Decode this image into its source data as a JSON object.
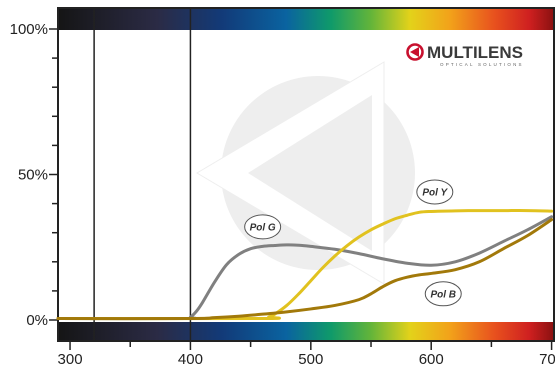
{
  "brand": {
    "name": "MULTILENS",
    "tagline": "OPTICAL SOLUTIONS",
    "logo_color": "#c8102e"
  },
  "chart_data": {
    "type": "line",
    "title": "",
    "xlabel": "",
    "ylabel": "",
    "xlim": [
      290,
      702
    ],
    "ylim": [
      0,
      100
    ],
    "x_ticks": [
      {
        "value": 300,
        "label": "300"
      },
      {
        "value": 400,
        "label": "400"
      },
      {
        "value": 500,
        "label": "500"
      },
      {
        "value": 600,
        "label": "600"
      },
      {
        "value": 700,
        "label": "700"
      }
    ],
    "y_ticks": [
      {
        "value": 0,
        "label": "0%"
      },
      {
        "value": 50,
        "label": "50%"
      },
      {
        "value": 100,
        "label": "100%"
      }
    ],
    "vertical_markers": [
      320,
      400
    ],
    "grid": false,
    "series": [
      {
        "name": "Pol G",
        "color": "#808080",
        "label_at": [
          460,
          32
        ],
        "x": [
          290,
          395,
          400,
          405,
          410,
          420,
          430,
          440,
          450,
          460,
          470,
          480,
          490,
          500,
          520,
          540,
          560,
          580,
          600,
          620,
          640,
          660,
          680,
          700
        ],
        "y": [
          0.5,
          0.5,
          1,
          3,
          6,
          13,
          19,
          22.5,
          24.5,
          25.3,
          25.6,
          25.8,
          25.7,
          25.3,
          24.3,
          22.8,
          21,
          19.5,
          18.8,
          20,
          23,
          27,
          31,
          35.5
        ]
      },
      {
        "name": "Pol Y",
        "color": "#e1c21f",
        "label_at": [
          603,
          44
        ],
        "x": [
          290,
          460,
          465,
          470,
          480,
          490,
          500,
          510,
          520,
          530,
          540,
          550,
          560,
          570,
          580,
          590,
          600,
          620,
          640,
          660,
          680,
          700
        ],
        "y": [
          0.5,
          0.5,
          1,
          2,
          5,
          9,
          13.5,
          18,
          22,
          25.5,
          28.5,
          31,
          33,
          34.8,
          36,
          37,
          37.3,
          37.5,
          37.6,
          37.6,
          37.6,
          37.4
        ]
      },
      {
        "name": "Pol B",
        "color": "#a2790a",
        "label_at": [
          610,
          9
        ],
        "x": [
          290,
          400,
          420,
          440,
          460,
          480,
          500,
          520,
          540,
          550,
          560,
          570,
          580,
          590,
          600,
          620,
          640,
          660,
          680,
          700
        ],
        "y": [
          0.5,
          0.5,
          0.8,
          1.3,
          2,
          2.8,
          3.8,
          5,
          7,
          9,
          11.5,
          13.5,
          14.7,
          15.5,
          16,
          17.3,
          20,
          24.5,
          29,
          34.5
        ]
      }
    ]
  }
}
